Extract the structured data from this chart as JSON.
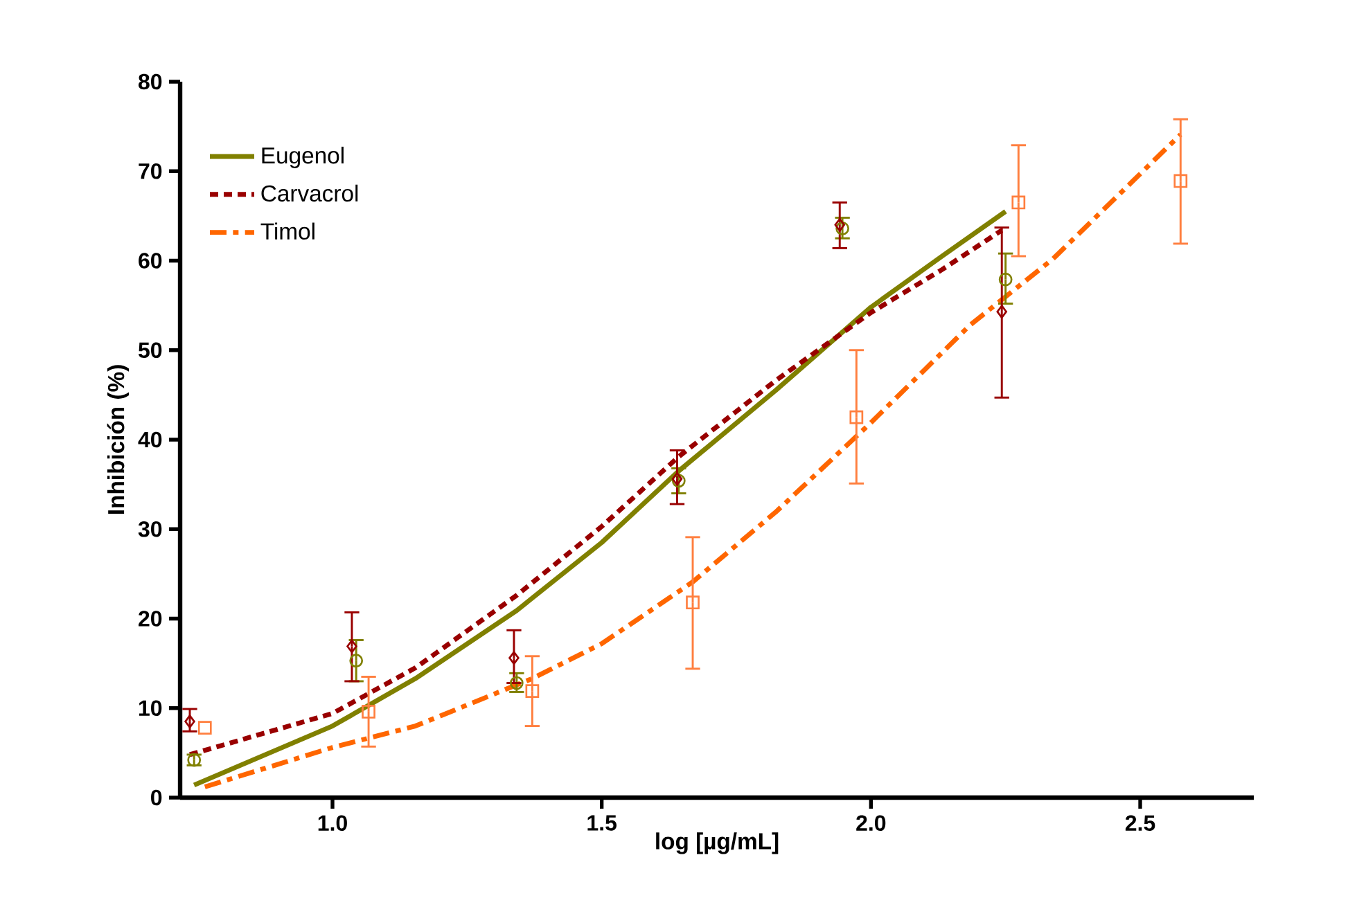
{
  "chart_data": {
    "type": "line",
    "xlabel": "log [µg/mL]",
    "ylabel": "Inhibición (%)",
    "xlim": [
      0.717,
      2.711
    ],
    "ylim": [
      0,
      80
    ],
    "xticks": [
      {
        "value": 1.0,
        "label": "1.0"
      },
      {
        "value": 1.5,
        "label": "1.5"
      },
      {
        "value": 2.0,
        "label": "2.0"
      },
      {
        "value": 2.5,
        "label": "2.5"
      }
    ],
    "yticks": [
      0,
      10,
      20,
      30,
      40,
      50,
      60,
      70,
      80
    ],
    "grid": false,
    "legend": "top left",
    "series": [
      {
        "name": "Eugenol",
        "color": "#808000",
        "line_style": "solid",
        "x": [
          0.743,
          1.0,
          1.154,
          1.342,
          1.5,
          1.643,
          1.823,
          2.0,
          2.132,
          2.25
        ],
        "values": [
          1.4,
          8.0,
          13.3,
          20.9,
          28.5,
          36.5,
          45.5,
          54.8,
          60.5,
          65.5
        ]
      },
      {
        "name": "Carvacrol",
        "color": "#990000",
        "line_style": "dotted",
        "x": [
          0.735,
          1.0,
          1.154,
          1.342,
          1.5,
          1.643,
          1.823,
          2.0,
          2.132,
          2.243
        ],
        "values": [
          4.8,
          9.4,
          14.5,
          22.6,
          30.3,
          38.1,
          46.6,
          54.2,
          59.0,
          63.4
        ]
      },
      {
        "name": "Timol",
        "color": "#ff6600",
        "line_style": "dashdot",
        "x": [
          0.763,
          1.0,
          1.154,
          1.371,
          1.5,
          1.669,
          1.823,
          2.0,
          2.184,
          2.338,
          2.575
        ],
        "values": [
          1.2,
          5.6,
          8.0,
          13.3,
          17.2,
          24.1,
          31.9,
          41.9,
          52.8,
          60.2,
          74.1
        ]
      },
      {
        "type": "scatter",
        "color": "#808000",
        "marker": "circle",
        "x": [
          0.743,
          1.044,
          1.342,
          1.643,
          1.947,
          2.25
        ],
        "values": [
          4.2,
          15.3,
          12.8,
          35.4,
          63.6,
          57.9
        ],
        "errors": [
          [
            3.6,
            4.8
          ],
          [
            13.0,
            17.6
          ],
          [
            11.8,
            13.9
          ],
          [
            34.0,
            36.8
          ],
          [
            62.5,
            64.8
          ],
          [
            55.2,
            60.8
          ]
        ]
      },
      {
        "type": "scatter",
        "color": "#990000",
        "marker": "diamond",
        "x": [
          0.735,
          1.036,
          1.337,
          1.64,
          1.942,
          2.243
        ],
        "values": [
          8.5,
          16.9,
          15.6,
          35.6,
          64.0,
          54.3
        ],
        "errors": [
          [
            7.4,
            9.9
          ],
          [
            13.0,
            20.7
          ],
          [
            12.8,
            18.7
          ],
          [
            32.8,
            38.8
          ],
          [
            61.4,
            66.5
          ],
          [
            44.7,
            63.7
          ]
        ]
      },
      {
        "type": "scatter",
        "color": "#ff7f3f",
        "marker": "square",
        "x": [
          0.763,
          1.067,
          1.371,
          1.669,
          1.973,
          2.274,
          2.575
        ],
        "values": [
          7.8,
          9.6,
          11.9,
          21.8,
          42.5,
          66.5,
          68.9
        ],
        "errors": [
          null,
          [
            5.7,
            13.5
          ],
          [
            8.0,
            15.8
          ],
          [
            14.4,
            29.1
          ],
          [
            35.1,
            50.0
          ],
          [
            60.5,
            72.9
          ],
          [
            61.9,
            75.8
          ]
        ]
      }
    ]
  }
}
